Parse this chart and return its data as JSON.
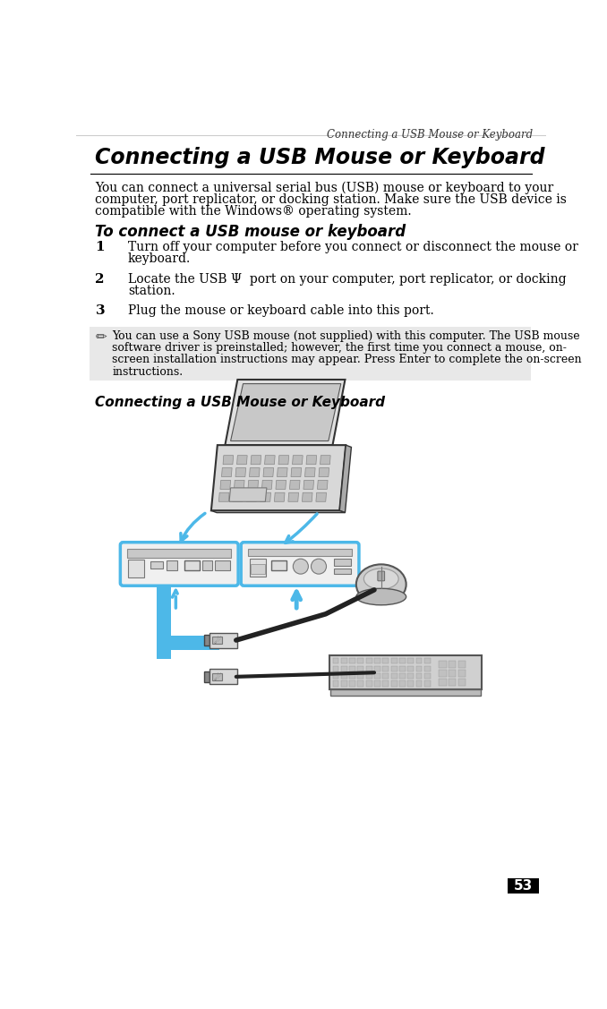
{
  "page_title": "Connecting a USB Mouse or Keyboard",
  "page_number": "53",
  "main_title": "Connecting a USB Mouse or Keyboard",
  "intro_lines": [
    "You can connect a universal serial bus (USB) mouse or keyboard to your",
    "computer, port replicator, or docking station. Make sure the USB device is",
    "compatible with the Windows® operating system."
  ],
  "section_title": "To connect a USB mouse or keyboard",
  "step1_num": "1",
  "step1_lines": [
    "Turn off your computer before you connect or disconnect the mouse or",
    "keyboard."
  ],
  "step2_num": "2",
  "step2_lines": [
    "Locate the USB Ψ  port on your computer, port replicator, or docking",
    "station."
  ],
  "step3_num": "3",
  "step3_lines": [
    "Plug the mouse or keyboard cable into this port."
  ],
  "note_lines": [
    "You can use a Sony USB mouse (not supplied) with this computer. The USB mouse",
    "software driver is preinstalled; however, the first time you connect a mouse, on-",
    "screen installation instructions may appear. Press Enter to complete the on-screen",
    "instructions."
  ],
  "caption": "Connecting a USB Mouse or Keyboard",
  "bg_color": "#ffffff",
  "note_bg_color": "#e8e8e8",
  "blue_color": "#4db8e8",
  "dark_blue": "#3399cc",
  "line_color": "#000000",
  "gray_light": "#d8d8d8",
  "gray_mid": "#b0b0b0",
  "gray_dark": "#888888",
  "text_color": "#000000"
}
